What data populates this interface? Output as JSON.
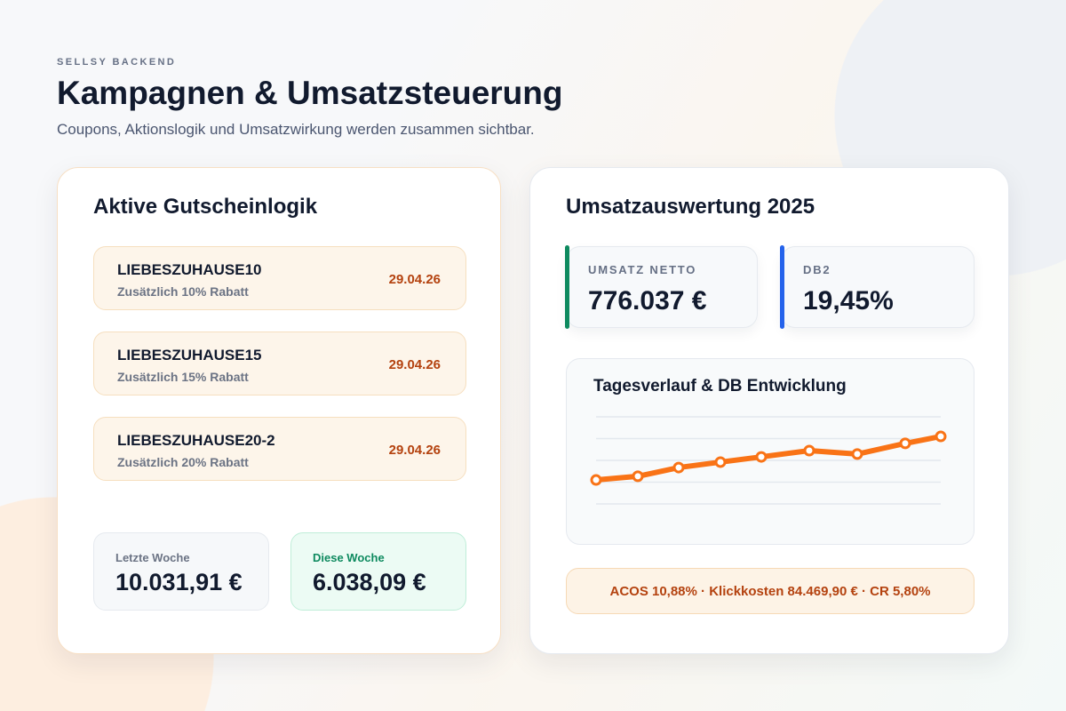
{
  "header": {
    "eyebrow": "SELLSY BACKEND",
    "title": "Kampagnen & Umsatzsteuerung",
    "subtitle": "Coupons, Aktionslogik und Umsatzwirkung werden zusammen sichtbar."
  },
  "coupons": {
    "title": "Aktive Gutscheinlogik",
    "items": [
      {
        "code": "LIEBESZUHAUSE10",
        "desc": "Zusätzlich 10% Rabatt",
        "date": "29.04.26"
      },
      {
        "code": "LIEBESZUHAUSE15",
        "desc": "Zusätzlich 15% Rabatt",
        "date": "29.04.26"
      },
      {
        "code": "LIEBESZUHAUSE20-2",
        "desc": "Zusätzlich 20% Rabatt",
        "date": "29.04.26"
      }
    ],
    "last_week": {
      "label": "Letzte Woche",
      "value": "10.031,91 €"
    },
    "this_week": {
      "label": "Diese Woche",
      "value": "6.038,09 €"
    }
  },
  "revenue": {
    "title": "Umsatzauswertung 2025",
    "kpis": [
      {
        "label": "UMSATZ NETTO",
        "value": "776.037 €",
        "color": "#0e8a5f"
      },
      {
        "label": "DB2",
        "value": "19,45%",
        "color": "#2563eb"
      }
    ],
    "footer": "ACOS 10,88% · Klickkosten 84.469,90 € · CR 5,80%"
  },
  "chart_data": {
    "type": "line",
    "title": "Tagesverlauf & DB Entwicklung",
    "x": [
      1,
      2,
      3,
      4,
      5,
      6,
      7,
      8,
      9
    ],
    "values": [
      1.1,
      1.27,
      1.67,
      1.92,
      2.16,
      2.45,
      2.29,
      2.78,
      3.1
    ],
    "ylim": [
      0,
      4
    ],
    "grid": true,
    "color": "#f97316"
  }
}
